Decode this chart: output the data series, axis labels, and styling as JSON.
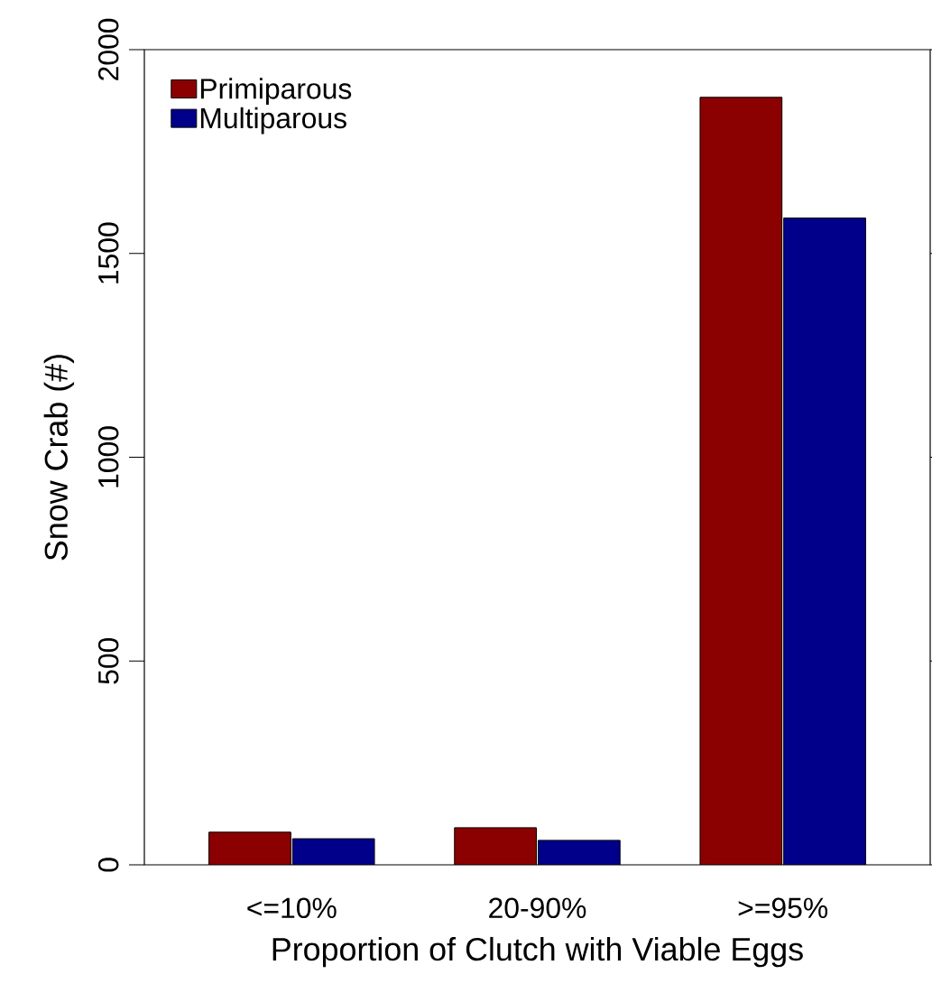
{
  "chart_data": {
    "type": "bar",
    "xlabel": "Proportion of Clutch with Viable Eggs",
    "ylabel": "Snow Crab (#)",
    "categories": [
      "<=10%",
      "20-90%",
      ">=95%"
    ],
    "series": [
      {
        "name": "Primiparous",
        "color": "#8b0000",
        "values": [
          80,
          91,
          1883
        ]
      },
      {
        "name": "Multiparous",
        "color": "#00008b",
        "values": [
          64,
          60,
          1587
        ]
      }
    ],
    "ylim": [
      0,
      2000
    ],
    "yticks": [
      0,
      500,
      1000,
      1500,
      2000
    ],
    "grid": false,
    "legend": "top left"
  }
}
